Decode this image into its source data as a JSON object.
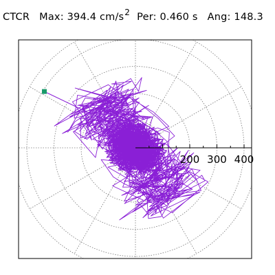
{
  "header": {
    "station": "CTCR",
    "max_label": "Max:",
    "max_value": "394.4",
    "max_unit": "cm/s",
    "max_exponent": "2",
    "per_label": "Per:",
    "per_value": "0.460",
    "per_unit": "s",
    "ang_label": "Ang:",
    "ang_value": "148.3"
  },
  "plot": {
    "radial_ticks": [
      {
        "value": 200,
        "label": "200"
      },
      {
        "value": 300,
        "label": "300"
      },
      {
        "value": 400,
        "label": "400"
      }
    ],
    "radial_max": 450,
    "colors": {
      "trace": "#8a1fd6",
      "grid": "#777777",
      "marker": "#1a9a6a",
      "frame": "#000000"
    },
    "peak": {
      "amplitude": 394.4,
      "angle_deg": 148.3
    }
  }
}
